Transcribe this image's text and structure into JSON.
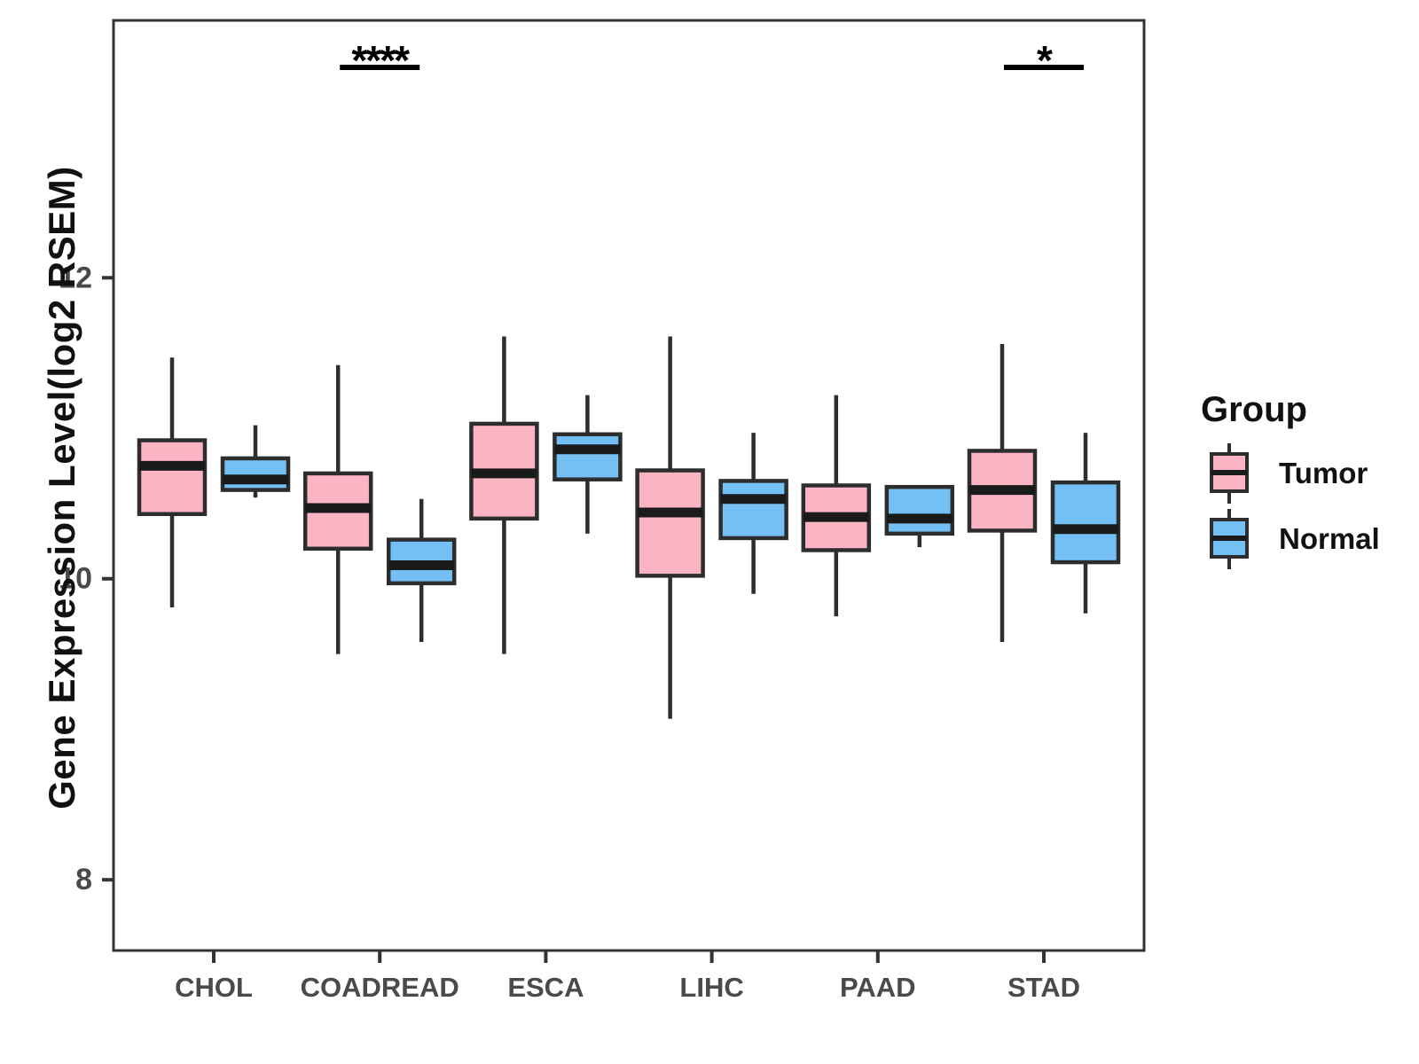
{
  "chart_data": {
    "type": "boxplot",
    "title": "",
    "ylabel": "Gene Expression Level(log2 RSEM)",
    "xlabel": "",
    "categories": [
      "CHOL",
      "COADREAD",
      "ESCA",
      "LIHC",
      "PAAD",
      "STAD"
    ],
    "yticks": [
      8,
      10,
      12
    ],
    "ylim": [
      7.53,
      13.71
    ],
    "grid": false,
    "legend": {
      "title": "Group",
      "position": "right"
    },
    "groups": [
      {
        "name": "Tumor",
        "color": "#FBB4C4"
      },
      {
        "name": "Normal",
        "color": "#74BFF4"
      }
    ],
    "series": [
      {
        "name": "Tumor",
        "stats": [
          {
            "category": "CHOL",
            "min": 9.81,
            "q1": 10.43,
            "median": 10.75,
            "q3": 10.92,
            "max": 11.47
          },
          {
            "category": "COADREAD",
            "min": 9.5,
            "q1": 10.2,
            "median": 10.47,
            "q3": 10.7,
            "max": 11.42
          },
          {
            "category": "ESCA",
            "min": 9.5,
            "q1": 10.4,
            "median": 10.7,
            "q3": 11.03,
            "max": 11.61
          },
          {
            "category": "LIHC",
            "min": 9.07,
            "q1": 10.02,
            "median": 10.44,
            "q3": 10.72,
            "max": 11.61
          },
          {
            "category": "PAAD",
            "min": 9.75,
            "q1": 10.19,
            "median": 10.41,
            "q3": 10.62,
            "max": 11.22
          },
          {
            "category": "STAD",
            "min": 9.58,
            "q1": 10.32,
            "median": 10.59,
            "q3": 10.85,
            "max": 11.56
          }
        ]
      },
      {
        "name": "Normal",
        "stats": [
          {
            "category": "CHOL",
            "min": 10.54,
            "q1": 10.59,
            "median": 10.66,
            "q3": 10.8,
            "max": 11.02
          },
          {
            "category": "COADREAD",
            "min": 9.58,
            "q1": 9.97,
            "median": 10.09,
            "q3": 10.26,
            "max": 10.53
          },
          {
            "category": "ESCA",
            "min": 10.3,
            "q1": 10.66,
            "median": 10.86,
            "q3": 10.96,
            "max": 11.22
          },
          {
            "category": "LIHC",
            "min": 9.9,
            "q1": 10.27,
            "median": 10.53,
            "q3": 10.65,
            "max": 10.97
          },
          {
            "category": "PAAD",
            "min": 10.21,
            "q1": 10.3,
            "median": 10.4,
            "q3": 10.61,
            "max": 10.61
          },
          {
            "category": "STAD",
            "min": 9.77,
            "q1": 10.11,
            "median": 10.33,
            "q3": 10.64,
            "max": 10.97
          }
        ]
      }
    ],
    "annotations": [
      {
        "category": "COADREAD",
        "label": "****"
      },
      {
        "category": "STAD",
        "label": "*"
      }
    ],
    "colors": {
      "box_border": "#2D2D2D",
      "median": "#1A1A1A",
      "whisker": "#2D2D2D",
      "panel_border": "#333333",
      "tick_label": "#4A4A4A",
      "annotation": "#000000"
    }
  }
}
